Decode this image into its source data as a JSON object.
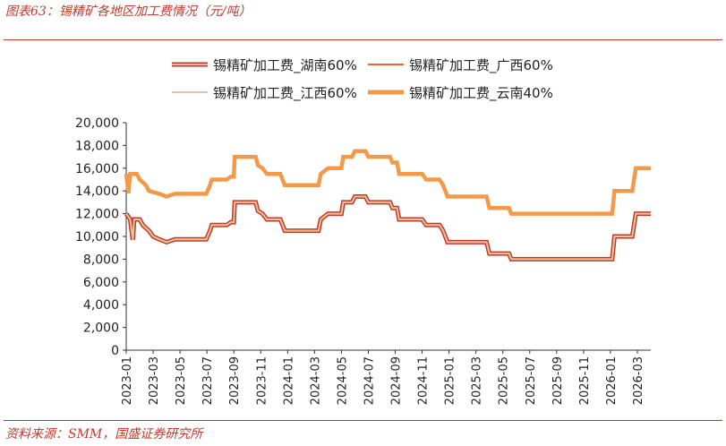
{
  "header": {
    "title": "图表63：锡精矿各地区加工费情况（元/吨）"
  },
  "footer": {
    "source": "资料来源：SMM，国盛证券研究所"
  },
  "chart_data": {
    "type": "line",
    "title": "图表63：锡精矿各地区加工费情况（元/吨）",
    "xlabel": "",
    "ylabel": "",
    "ylim": [
      0,
      20000
    ],
    "yticks": [
      0,
      2000,
      4000,
      6000,
      8000,
      10000,
      12000,
      14000,
      16000,
      18000,
      20000
    ],
    "ytick_labels": [
      "0",
      "2,000",
      "4,000",
      "6,000",
      "8,000",
      "10,000",
      "12,000",
      "14,000",
      "16,000",
      "18,000",
      "20,000"
    ],
    "xlim": [
      "2023-01",
      "2026-04"
    ],
    "xtick_labels": [
      "2023-01",
      "2023-03",
      "2023-05",
      "2023-07",
      "2023-09",
      "2023-11",
      "2024-01",
      "2024-03",
      "2024-05",
      "2024-07",
      "2024-09",
      "2024-11",
      "2025-01",
      "2025-03",
      "2025-05",
      "2025-07",
      "2025-09",
      "2025-11",
      "2026-01",
      "2026-03"
    ],
    "grid": false,
    "legend_position": "top",
    "series": [
      {
        "name": "锡精矿加工费_湖南60%",
        "color": "#c0392b",
        "style": "double",
        "points": [
          [
            "2023-01-01",
            12000
          ],
          [
            "2023-01-10",
            11500
          ],
          [
            "2023-01-16",
            9700
          ],
          [
            "2023-01-19",
            11500
          ],
          [
            "2023-02-01",
            11500
          ],
          [
            "2023-02-08",
            11000
          ],
          [
            "2023-02-15",
            10750
          ],
          [
            "2023-02-22",
            10500
          ],
          [
            "2023-03-01",
            10000
          ],
          [
            "2023-03-15",
            9750
          ],
          [
            "2023-04-01",
            9500
          ],
          [
            "2023-04-20",
            9750
          ],
          [
            "2023-06-30",
            9750
          ],
          [
            "2023-07-08",
            10500
          ],
          [
            "2023-07-12",
            11000
          ],
          [
            "2023-08-15",
            11000
          ],
          [
            "2023-08-25",
            11250
          ],
          [
            "2023-09-01",
            11250
          ],
          [
            "2023-09-03",
            13000
          ],
          [
            "2023-10-20",
            13000
          ],
          [
            "2023-10-25",
            12250
          ],
          [
            "2023-11-05",
            12000
          ],
          [
            "2023-11-15",
            11500
          ],
          [
            "2023-12-15",
            11500
          ],
          [
            "2023-12-25",
            10500
          ],
          [
            "2024-03-10",
            10500
          ],
          [
            "2024-03-15",
            11500
          ],
          [
            "2024-04-01",
            12000
          ],
          [
            "2024-05-01",
            12000
          ],
          [
            "2024-05-05",
            13000
          ],
          [
            "2024-05-25",
            13000
          ],
          [
            "2024-06-01",
            13500
          ],
          [
            "2024-06-25",
            13500
          ],
          [
            "2024-07-01",
            13000
          ],
          [
            "2024-08-20",
            13000
          ],
          [
            "2024-08-25",
            12500
          ],
          [
            "2024-09-05",
            12500
          ],
          [
            "2024-09-10",
            11500
          ],
          [
            "2024-11-01",
            11500
          ],
          [
            "2024-11-10",
            11000
          ],
          [
            "2024-12-10",
            11000
          ],
          [
            "2024-12-18",
            10500
          ],
          [
            "2024-12-28",
            9500
          ],
          [
            "2025-03-25",
            9500
          ],
          [
            "2025-04-01",
            8500
          ],
          [
            "2025-05-15",
            8500
          ],
          [
            "2025-05-20",
            8000
          ],
          [
            "2026-01-05",
            8000
          ],
          [
            "2026-01-10",
            10000
          ],
          [
            "2026-02-20",
            10000
          ],
          [
            "2026-02-28",
            12000
          ],
          [
            "2026-04-01",
            12000
          ]
        ]
      },
      {
        "name": "锡精矿加工费_广西60%",
        "color": "#e8662e",
        "style": "solid",
        "points": [
          [
            "2023-01-01",
            12000
          ],
          [
            "2023-01-10",
            11500
          ],
          [
            "2023-01-16",
            9700
          ],
          [
            "2023-01-19",
            11500
          ],
          [
            "2023-02-01",
            11500
          ],
          [
            "2023-02-08",
            11000
          ],
          [
            "2023-02-15",
            10750
          ],
          [
            "2023-02-22",
            10500
          ],
          [
            "2023-03-01",
            10000
          ],
          [
            "2023-03-15",
            9750
          ],
          [
            "2023-04-01",
            9500
          ],
          [
            "2023-04-20",
            9750
          ],
          [
            "2023-06-30",
            9750
          ],
          [
            "2023-07-08",
            10500
          ],
          [
            "2023-07-12",
            11000
          ],
          [
            "2023-08-15",
            11000
          ],
          [
            "2023-08-25",
            11250
          ],
          [
            "2023-09-01",
            11250
          ],
          [
            "2023-09-03",
            13000
          ],
          [
            "2023-10-20",
            13000
          ],
          [
            "2023-10-25",
            12250
          ],
          [
            "2023-11-05",
            12000
          ],
          [
            "2023-11-15",
            11500
          ],
          [
            "2023-12-15",
            11500
          ],
          [
            "2023-12-25",
            10500
          ],
          [
            "2024-03-10",
            10500
          ],
          [
            "2024-03-15",
            11500
          ],
          [
            "2024-04-01",
            12000
          ],
          [
            "2024-05-01",
            12000
          ],
          [
            "2024-05-05",
            13000
          ],
          [
            "2024-05-25",
            13000
          ],
          [
            "2024-06-01",
            13500
          ],
          [
            "2024-06-25",
            13500
          ],
          [
            "2024-07-01",
            13000
          ],
          [
            "2024-08-20",
            13000
          ],
          [
            "2024-08-25",
            12500
          ],
          [
            "2024-09-05",
            12500
          ],
          [
            "2024-09-10",
            11500
          ],
          [
            "2024-11-01",
            11500
          ],
          [
            "2024-11-10",
            11000
          ],
          [
            "2024-12-10",
            11000
          ],
          [
            "2024-12-18",
            10500
          ],
          [
            "2024-12-28",
            9500
          ],
          [
            "2025-03-25",
            9500
          ],
          [
            "2025-04-01",
            8500
          ],
          [
            "2025-05-15",
            8500
          ],
          [
            "2025-05-20",
            8000
          ],
          [
            "2026-01-05",
            8000
          ],
          [
            "2026-01-10",
            10000
          ],
          [
            "2026-02-20",
            10000
          ],
          [
            "2026-02-28",
            12000
          ],
          [
            "2026-04-01",
            12000
          ]
        ]
      },
      {
        "name": "锡精矿加工费_江西60%",
        "color": "#e8c49a",
        "style": "solid",
        "points": [
          [
            "2023-01-01",
            12000
          ],
          [
            "2023-01-10",
            11500
          ],
          [
            "2023-01-16",
            9700
          ],
          [
            "2023-01-19",
            11500
          ],
          [
            "2023-02-01",
            11500
          ],
          [
            "2023-02-08",
            11000
          ],
          [
            "2023-02-15",
            10750
          ],
          [
            "2023-02-22",
            10500
          ],
          [
            "2023-03-01",
            10000
          ],
          [
            "2023-03-15",
            9750
          ],
          [
            "2023-04-01",
            9500
          ],
          [
            "2023-04-20",
            9750
          ],
          [
            "2023-06-30",
            9750
          ],
          [
            "2023-07-08",
            10500
          ],
          [
            "2023-07-12",
            11000
          ],
          [
            "2023-08-15",
            11000
          ],
          [
            "2023-08-25",
            11250
          ],
          [
            "2023-09-01",
            11250
          ],
          [
            "2023-09-03",
            13000
          ],
          [
            "2023-10-20",
            13000
          ],
          [
            "2023-10-25",
            12250
          ],
          [
            "2023-11-05",
            12000
          ],
          [
            "2023-11-15",
            11500
          ],
          [
            "2023-12-15",
            11500
          ],
          [
            "2023-12-25",
            10500
          ],
          [
            "2024-03-10",
            10500
          ],
          [
            "2024-03-15",
            11500
          ],
          [
            "2024-04-01",
            12000
          ],
          [
            "2024-05-01",
            12000
          ],
          [
            "2024-05-05",
            13000
          ],
          [
            "2024-05-25",
            13000
          ],
          [
            "2024-06-01",
            13500
          ],
          [
            "2024-06-25",
            13500
          ],
          [
            "2024-07-01",
            13000
          ],
          [
            "2024-08-20",
            13000
          ],
          [
            "2024-08-25",
            12500
          ],
          [
            "2024-09-05",
            12500
          ],
          [
            "2024-09-10",
            11500
          ],
          [
            "2024-11-01",
            11500
          ],
          [
            "2024-11-10",
            11000
          ],
          [
            "2024-12-10",
            11000
          ],
          [
            "2024-12-18",
            10500
          ],
          [
            "2024-12-28",
            9500
          ],
          [
            "2025-03-25",
            9500
          ],
          [
            "2025-04-01",
            8500
          ],
          [
            "2025-05-15",
            8500
          ],
          [
            "2025-05-20",
            8000
          ],
          [
            "2026-01-05",
            8000
          ],
          [
            "2026-01-10",
            10000
          ],
          [
            "2026-02-20",
            10000
          ],
          [
            "2026-02-28",
            12000
          ],
          [
            "2026-04-01",
            12000
          ]
        ]
      },
      {
        "name": "锡精矿加工费_云南40%",
        "color": "#f39a4a",
        "style": "thick",
        "points": [
          [
            "2023-01-01",
            15500
          ],
          [
            "2023-01-06",
            13800
          ],
          [
            "2023-01-10",
            15500
          ],
          [
            "2023-01-25",
            15500
          ],
          [
            "2023-02-01",
            15000
          ],
          [
            "2023-02-15",
            14500
          ],
          [
            "2023-02-22",
            14000
          ],
          [
            "2023-03-15",
            13750
          ],
          [
            "2023-04-01",
            13500
          ],
          [
            "2023-04-20",
            13750
          ],
          [
            "2023-06-30",
            13750
          ],
          [
            "2023-07-08",
            14500
          ],
          [
            "2023-07-12",
            15000
          ],
          [
            "2023-08-15",
            15000
          ],
          [
            "2023-08-25",
            15250
          ],
          [
            "2023-09-01",
            15250
          ],
          [
            "2023-09-03",
            17000
          ],
          [
            "2023-10-20",
            17000
          ],
          [
            "2023-10-25",
            16250
          ],
          [
            "2023-11-05",
            16000
          ],
          [
            "2023-11-15",
            15500
          ],
          [
            "2023-12-15",
            15500
          ],
          [
            "2023-12-25",
            14500
          ],
          [
            "2024-03-10",
            14500
          ],
          [
            "2024-03-15",
            15500
          ],
          [
            "2024-04-01",
            16000
          ],
          [
            "2024-05-01",
            16000
          ],
          [
            "2024-05-05",
            17000
          ],
          [
            "2024-05-25",
            17000
          ],
          [
            "2024-06-01",
            17500
          ],
          [
            "2024-06-25",
            17500
          ],
          [
            "2024-07-01",
            17000
          ],
          [
            "2024-08-20",
            17000
          ],
          [
            "2024-08-25",
            16500
          ],
          [
            "2024-09-05",
            16500
          ],
          [
            "2024-09-10",
            15500
          ],
          [
            "2024-11-01",
            15500
          ],
          [
            "2024-11-10",
            15000
          ],
          [
            "2024-12-10",
            15000
          ],
          [
            "2024-12-18",
            14500
          ],
          [
            "2024-12-28",
            13500
          ],
          [
            "2025-03-25",
            13500
          ],
          [
            "2025-04-01",
            12500
          ],
          [
            "2025-05-15",
            12500
          ],
          [
            "2025-05-20",
            12000
          ],
          [
            "2026-01-05",
            12000
          ],
          [
            "2026-01-10",
            14000
          ],
          [
            "2026-02-20",
            14000
          ],
          [
            "2026-02-28",
            16000
          ],
          [
            "2026-04-01",
            16000
          ]
        ]
      }
    ]
  }
}
